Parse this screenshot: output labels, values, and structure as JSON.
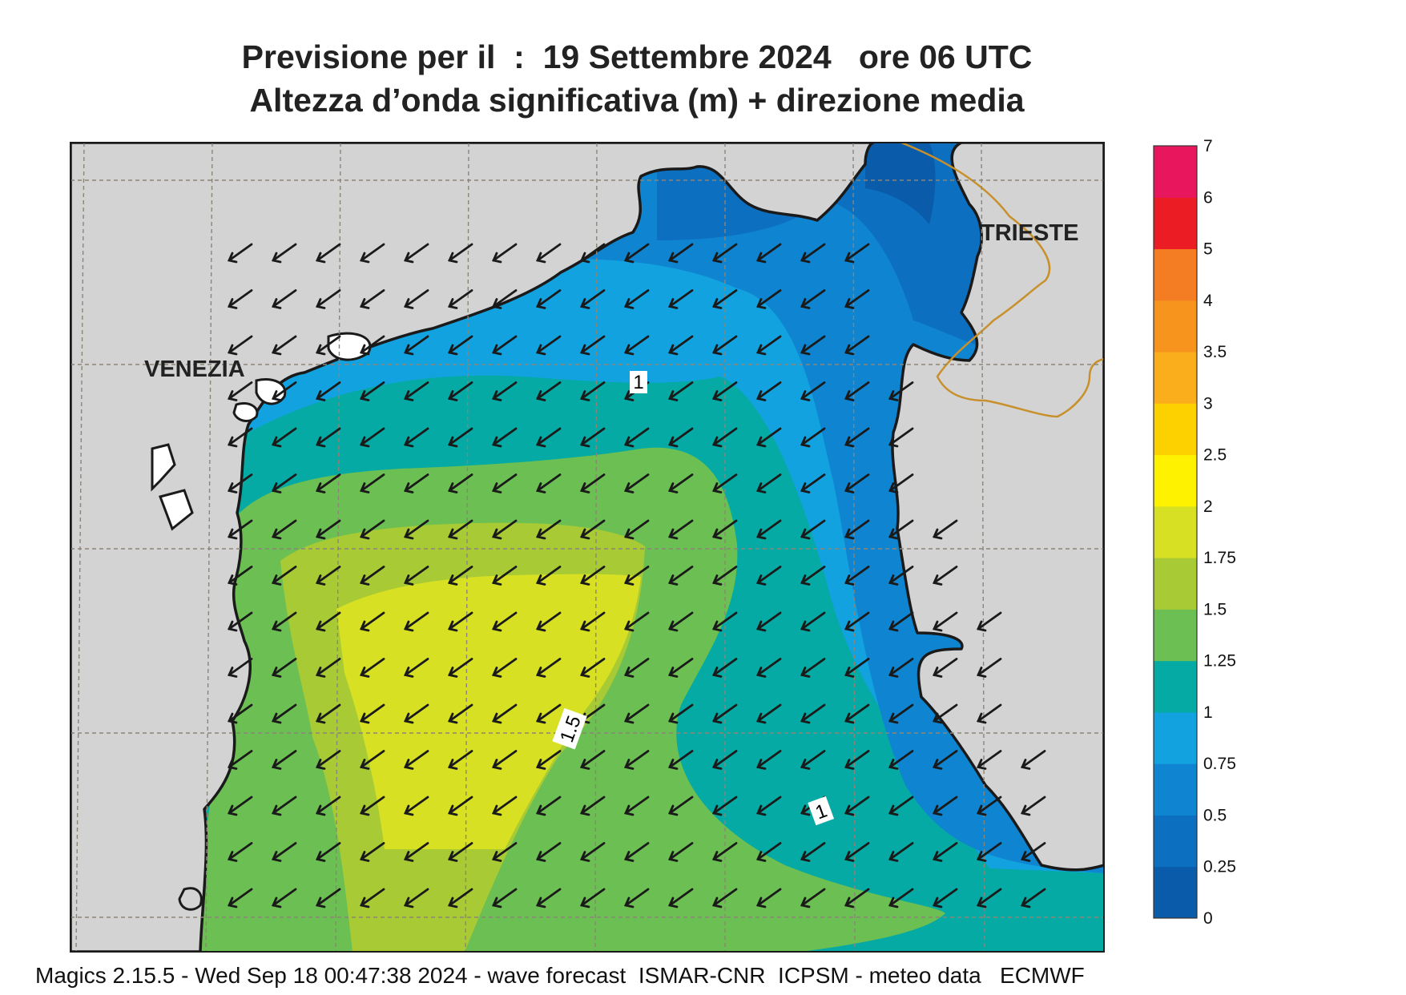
{
  "header": {
    "title_line1": "Previsione per il  :  19 Settembre 2024   ore 06 UTC",
    "title_line2": "Altezza d’onda significativa (m) + direzione media"
  },
  "map": {
    "cities": [
      {
        "name": "VENEZIA"
      },
      {
        "name": "TRIESTE"
      }
    ],
    "contour_labels": [
      "1",
      "1.5",
      "1"
    ],
    "arrow_direction": "south-west",
    "colors": {
      "land": "#d3d3d4",
      "border": "#c8902a",
      "coast": "#1a1a1a"
    }
  },
  "colorbar": {
    "levels": [
      {
        "label": "0",
        "color": "#0a5cab"
      },
      {
        "label": "0.25",
        "color": "#0d6fc0"
      },
      {
        "label": "0.5",
        "color": "#0f84d0"
      },
      {
        "label": "0.75",
        "color": "#13a2e0"
      },
      {
        "label": "1",
        "color": "#04aaa3"
      },
      {
        "label": "1.25",
        "color": "#6cbf52"
      },
      {
        "label": "1.5",
        "color": "#a8cb35"
      },
      {
        "label": "1.75",
        "color": "#d7e023"
      },
      {
        "label": "2",
        "color": "#fef200"
      },
      {
        "label": "2.5",
        "color": "#fdd000"
      },
      {
        "label": "3",
        "color": "#fbae1c"
      },
      {
        "label": "3.5",
        "color": "#f7941e"
      },
      {
        "label": "4",
        "color": "#f47c22"
      },
      {
        "label": "5",
        "color": "#ec1c24"
      },
      {
        "label": "6",
        "color": "#e8175d"
      },
      {
        "label": "7",
        "color": ""
      }
    ]
  },
  "footer": "Magics 2.15.5 - Wed Sep 18 00:47:38 2024 - wave forecast  ISMAR-CNR  ICPSM - meteo data   ECMWF"
}
